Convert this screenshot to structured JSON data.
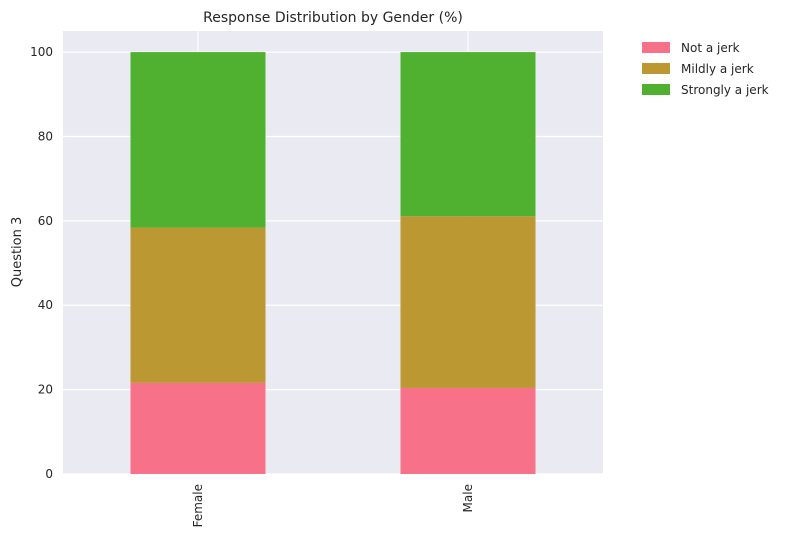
{
  "chart_data": {
    "type": "bar",
    "stacked": true,
    "title": "Response Distribution by Gender (%)",
    "xlabel": "",
    "ylabel": "Question 3",
    "categories": [
      "Female",
      "Male"
    ],
    "ylim": [
      0,
      105
    ],
    "yticks": [
      0,
      20,
      40,
      60,
      80,
      100
    ],
    "grid": true,
    "legend_position": "outside-top-right",
    "background": "#EAEAF2",
    "series": [
      {
        "name": "Not a jerk",
        "color": "#F77189",
        "values": [
          21.6,
          20.4
        ]
      },
      {
        "name": "Mildly a jerk",
        "color": "#BB9832",
        "values": [
          36.8,
          40.7
        ]
      },
      {
        "name": "Strongly a jerk",
        "color": "#50B131",
        "values": [
          41.6,
          38.9
        ]
      }
    ]
  }
}
